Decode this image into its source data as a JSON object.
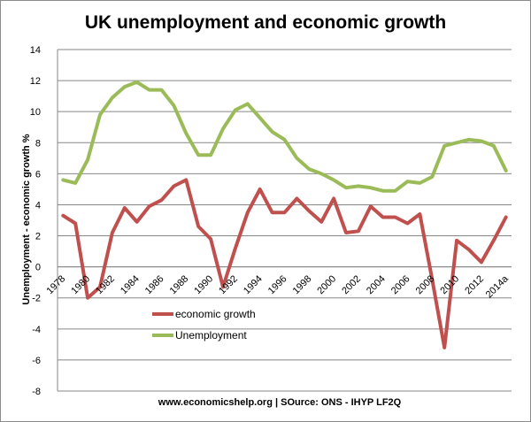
{
  "chart_data": {
    "type": "line",
    "title": "UK unemployment and economic growth",
    "xlabel": "",
    "ylabel": "Unemployment - economic growth %",
    "source": "www.economicshelp.org | SOurce: ONS - IHYP LF2Q",
    "ylim": [
      -8,
      14
    ],
    "yticks": [
      -8,
      -6,
      -4,
      -2,
      0,
      2,
      4,
      6,
      8,
      10,
      12,
      14
    ],
    "grid": true,
    "legend_position": "lower-left",
    "x": [
      "1978",
      "1979",
      "1980",
      "1981",
      "1982",
      "1983",
      "1984",
      "1985",
      "1986",
      "1987",
      "1988",
      "1989",
      "1990",
      "1991",
      "1992",
      "1993",
      "1994",
      "1995",
      "1996",
      "1997",
      "1998",
      "1999",
      "2000",
      "2001",
      "2002",
      "2003",
      "2004",
      "2005",
      "2006",
      "2007",
      "2008",
      "2009",
      "2010",
      "2011",
      "2012",
      "2013",
      "2014a"
    ],
    "x_tick_labels": [
      "1978",
      "",
      "1980",
      "",
      "1982",
      "",
      "1984",
      "",
      "1986",
      "",
      "1988",
      "",
      "1990",
      "",
      "1992",
      "",
      "1994",
      "",
      "1996",
      "",
      "1998",
      "",
      "2000",
      "",
      "2002",
      "",
      "2004",
      "",
      "2006",
      "",
      "2008",
      "",
      "2010",
      "",
      "2012",
      "",
      "2014a"
    ],
    "series": [
      {
        "name": "economic growth",
        "color": "#c0504d",
        "values": [
          3.3,
          2.8,
          -2.0,
          -1.3,
          2.2,
          3.8,
          2.9,
          3.9,
          4.3,
          5.2,
          5.6,
          2.6,
          1.8,
          -1.3,
          1.2,
          3.5,
          5.0,
          3.5,
          3.5,
          4.4,
          3.6,
          2.9,
          4.4,
          2.2,
          2.3,
          3.9,
          3.2,
          3.2,
          2.8,
          3.4,
          -0.8,
          -5.2,
          1.7,
          1.1,
          0.3,
          1.7,
          3.2
        ]
      },
      {
        "name": "Unemployment",
        "color": "#9bbb59",
        "values": [
          5.6,
          5.4,
          6.9,
          9.8,
          10.9,
          11.6,
          11.9,
          11.4,
          11.4,
          10.4,
          8.6,
          7.2,
          7.2,
          8.9,
          10.1,
          10.5,
          9.6,
          8.7,
          8.2,
          7.0,
          6.3,
          6.0,
          5.6,
          5.1,
          5.2,
          5.1,
          4.9,
          4.9,
          5.5,
          5.4,
          5.8,
          7.8,
          8.0,
          8.2,
          8.1,
          7.8,
          6.2
        ]
      }
    ]
  }
}
